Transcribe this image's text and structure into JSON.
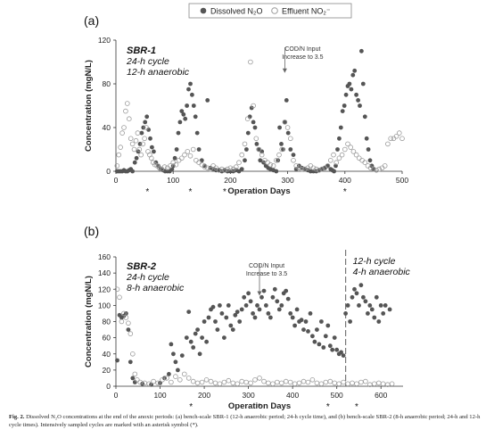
{
  "legend": {
    "dissolved_label": "Dissolved N₂O",
    "effluent_label": "Effluent NO₂⁻",
    "dissolved_color": "#555555",
    "effluent_color": "#9a9a9a"
  },
  "caption": {
    "label": "Fig. 2.",
    "text": "Dissolved N₂O concentrations at the end of the anoxic periods: (a) bench-scale SBR-1 (12-h anaerobic period; 24-h cycle time), and (b) bench-scale SBR-2 (8-h anaerobic period; 24-h and 12-h cycle times). Intensively sampled cycles are marked with an asterisk symbol (*)."
  },
  "chart_data": [
    {
      "type": "scatter",
      "panel_label": "(a)",
      "reactor": "SBR-1",
      "notes": [
        "24-h cycle",
        "12-h anaerobic"
      ],
      "annotation": {
        "text": [
          "COD/N Input",
          "Increase to 3.5"
        ],
        "x": 295
      },
      "xlabel": "Operation Days",
      "ylabel": "Concentration (mgN/L)",
      "xlim": [
        0,
        500
      ],
      "ylim": [
        0,
        120
      ],
      "xticks": [
        0,
        100,
        200,
        300,
        400,
        500
      ],
      "yticks": [
        0,
        40,
        80,
        120
      ],
      "asterisk_days": [
        55,
        130,
        190,
        400
      ],
      "series": [
        {
          "name": "Dissolved N₂O",
          "marker": "filled",
          "x": [
            2,
            5,
            8,
            11,
            14,
            17,
            20,
            23,
            26,
            29,
            33,
            36,
            39,
            42,
            45,
            48,
            51,
            54,
            57,
            60,
            63,
            66,
            70,
            74,
            78,
            82,
            86,
            90,
            94,
            98,
            100,
            103,
            106,
            109,
            112,
            115,
            118,
            121,
            124,
            127,
            130,
            133,
            136,
            139,
            142,
            145,
            150,
            155,
            160,
            165,
            170,
            175,
            180,
            185,
            190,
            195,
            200,
            205,
            210,
            215,
            220,
            225,
            228,
            231,
            234,
            237,
            240,
            243,
            246,
            249,
            252,
            255,
            258,
            262,
            266,
            270,
            275,
            280,
            283,
            286,
            289,
            292,
            295,
            298,
            301,
            305,
            310,
            315,
            320,
            325,
            330,
            335,
            340,
            345,
            350,
            355,
            360,
            365,
            370,
            375,
            378,
            381,
            384,
            387,
            390,
            393,
            396,
            399,
            402,
            405,
            408,
            411,
            414,
            417,
            420,
            423,
            426,
            429,
            432,
            435,
            438,
            441,
            444,
            447,
            450
          ],
          "y": [
            0,
            0,
            0,
            0,
            1,
            0,
            0,
            1,
            2,
            0,
            8,
            12,
            18,
            25,
            35,
            40,
            45,
            50,
            38,
            30,
            22,
            18,
            8,
            5,
            2,
            1,
            0,
            0,
            0,
            2,
            5,
            12,
            20,
            35,
            45,
            55,
            52,
            48,
            60,
            75,
            80,
            70,
            60,
            50,
            35,
            20,
            10,
            5,
            65,
            3,
            2,
            1,
            1,
            0,
            1,
            0,
            0,
            0,
            1,
            0,
            2,
            10,
            20,
            35,
            50,
            58,
            45,
            40,
            25,
            20,
            10,
            18,
            8,
            5,
            3,
            2,
            1,
            0,
            10,
            40,
            25,
            20,
            45,
            65,
            35,
            20,
            15,
            2,
            5,
            3,
            2,
            1,
            0,
            0,
            0,
            1,
            2,
            3,
            5,
            2,
            1,
            0,
            5,
            20,
            30,
            40,
            55,
            60,
            70,
            78,
            80,
            75,
            88,
            92,
            70,
            65,
            60,
            110,
            80,
            50,
            30,
            20,
            10,
            5,
            2
          ]
        },
        {
          "name": "Effluent NO₂⁻",
          "marker": "open",
          "x": [
            2,
            5,
            8,
            11,
            14,
            17,
            20,
            23,
            26,
            29,
            32,
            35,
            38,
            41,
            44,
            47,
            50,
            53,
            56,
            59,
            62,
            65,
            68,
            72,
            76,
            80,
            85,
            90,
            95,
            100,
            105,
            110,
            115,
            120,
            125,
            130,
            135,
            140,
            145,
            150,
            155,
            160,
            165,
            170,
            175,
            180,
            185,
            190,
            195,
            200,
            205,
            210,
            215,
            220,
            225,
            230,
            235,
            240,
            245,
            250,
            255,
            260,
            265,
            270,
            275,
            280,
            285,
            290,
            295,
            300,
            305,
            310,
            315,
            320,
            325,
            330,
            335,
            340,
            345,
            350,
            355,
            360,
            365,
            370,
            375,
            380,
            385,
            390,
            395,
            400,
            405,
            410,
            415,
            420,
            425,
            430,
            435,
            440,
            445,
            450,
            455,
            460,
            465,
            470,
            475,
            480,
            485,
            490,
            495,
            500
          ],
          "y": [
            5,
            15,
            22,
            35,
            40,
            55,
            62,
            48,
            30,
            25,
            20,
            28,
            35,
            20,
            15,
            25,
            30,
            40,
            18,
            15,
            12,
            8,
            6,
            5,
            3,
            2,
            4,
            3,
            5,
            8,
            6,
            10,
            12,
            15,
            18,
            14,
            20,
            10,
            8,
            6,
            4,
            3,
            2,
            5,
            3,
            1,
            2,
            1,
            2,
            3,
            2,
            4,
            8,
            15,
            25,
            48,
            100,
            60,
            30,
            20,
            15,
            10,
            8,
            6,
            5,
            10,
            15,
            20,
            45,
            40,
            30,
            10,
            5,
            3,
            2,
            2,
            3,
            5,
            3,
            2,
            1,
            2,
            3,
            5,
            10,
            15,
            8,
            12,
            15,
            20,
            25,
            22,
            18,
            15,
            12,
            10,
            8,
            5,
            3,
            2,
            1,
            2,
            3,
            5,
            25,
            30,
            30,
            32,
            35,
            30
          ]
        }
      ]
    },
    {
      "type": "scatter",
      "panel_label": "(b)",
      "reactor": "SBR-2",
      "notes": [
        "24-h cycle",
        "8-h anaerobic"
      ],
      "notes_after_change": [
        "12-h cycle",
        "4-h anaerobic"
      ],
      "change_day": 520,
      "annotation": {
        "text": [
          "COD/N Input",
          "Increase to 3.5"
        ],
        "x": 325
      },
      "xlabel": "Operation Days",
      "ylabel": "Concentration (mgN/L)",
      "xlim": [
        0,
        650
      ],
      "ylim": [
        0,
        160
      ],
      "xticks": [
        0,
        100,
        200,
        300,
        400,
        500,
        600
      ],
      "yticks": [
        0,
        20,
        40,
        60,
        80,
        100,
        120,
        140,
        160
      ],
      "asterisk_days": [
        170,
        325,
        480,
        545
      ],
      "series": [
        {
          "name": "Dissolved N₂O",
          "marker": "filled",
          "x": [
            3,
            8,
            13,
            18,
            23,
            28,
            33,
            38,
            43,
            60,
            80,
            100,
            110,
            120,
            125,
            130,
            135,
            140,
            150,
            160,
            165,
            170,
            175,
            180,
            185,
            190,
            195,
            200,
            205,
            210,
            215,
            220,
            225,
            230,
            235,
            240,
            245,
            250,
            255,
            260,
            265,
            270,
            275,
            280,
            285,
            290,
            295,
            300,
            305,
            310,
            315,
            320,
            325,
            330,
            335,
            340,
            345,
            350,
            355,
            360,
            365,
            370,
            375,
            380,
            385,
            390,
            395,
            400,
            405,
            410,
            415,
            420,
            425,
            430,
            435,
            440,
            445,
            450,
            455,
            460,
            465,
            470,
            475,
            480,
            485,
            490,
            495,
            500,
            505,
            510,
            515,
            520,
            525,
            530,
            535,
            540,
            545,
            550,
            555,
            560,
            565,
            570,
            575,
            580,
            585,
            590,
            595,
            600,
            605,
            610,
            620
          ],
          "y": [
            32,
            88,
            85,
            87,
            90,
            70,
            30,
            10,
            5,
            3,
            2,
            4,
            10,
            15,
            52,
            40,
            30,
            20,
            38,
            60,
            92,
            55,
            48,
            65,
            70,
            40,
            60,
            80,
            55,
            85,
            95,
            98,
            80,
            70,
            100,
            90,
            60,
            85,
            100,
            75,
            70,
            88,
            92,
            80,
            95,
            110,
            100,
            115,
            105,
            90,
            85,
            100,
            95,
            110,
            118,
            100,
            90,
            85,
            110,
            120,
            105,
            95,
            100,
            115,
            118,
            108,
            90,
            85,
            75,
            95,
            80,
            82,
            70,
            80,
            68,
            90,
            62,
            55,
            70,
            52,
            80,
            48,
            62,
            75,
            50,
            45,
            60,
            45,
            40,
            42,
            38,
            90,
            100,
            80,
            110,
            120,
            115,
            100,
            125,
            110,
            105,
            90,
            100,
            95,
            85,
            110,
            80,
            100,
            90,
            100,
            95
          ]
        },
        {
          "name": "Effluent NO₂⁻",
          "marker": "open",
          "x": [
            3,
            8,
            13,
            18,
            23,
            28,
            33,
            38,
            43,
            48,
            55,
            65,
            75,
            85,
            95,
            105,
            115,
            125,
            135,
            145,
            155,
            165,
            175,
            185,
            195,
            205,
            215,
            225,
            235,
            245,
            255,
            265,
            275,
            285,
            295,
            305,
            315,
            325,
            335,
            345,
            355,
            365,
            375,
            385,
            395,
            405,
            415,
            425,
            435,
            445,
            455,
            465,
            475,
            485,
            495,
            505,
            515,
            525,
            535,
            545,
            555,
            565,
            575,
            585,
            595,
            605,
            615,
            625
          ],
          "y": [
            120,
            110,
            80,
            90,
            85,
            78,
            65,
            40,
            15,
            8,
            5,
            4,
            3,
            6,
            4,
            8,
            10,
            5,
            12,
            8,
            15,
            10,
            6,
            4,
            5,
            8,
            6,
            4,
            3,
            5,
            7,
            4,
            3,
            6,
            5,
            4,
            8,
            10,
            6,
            4,
            3,
            5,
            4,
            6,
            5,
            3,
            4,
            6,
            5,
            8,
            4,
            3,
            5,
            6,
            4,
            3,
            5,
            3,
            4,
            3,
            5,
            6,
            2,
            3,
            4,
            3,
            2,
            3
          ]
        }
      ]
    }
  ]
}
